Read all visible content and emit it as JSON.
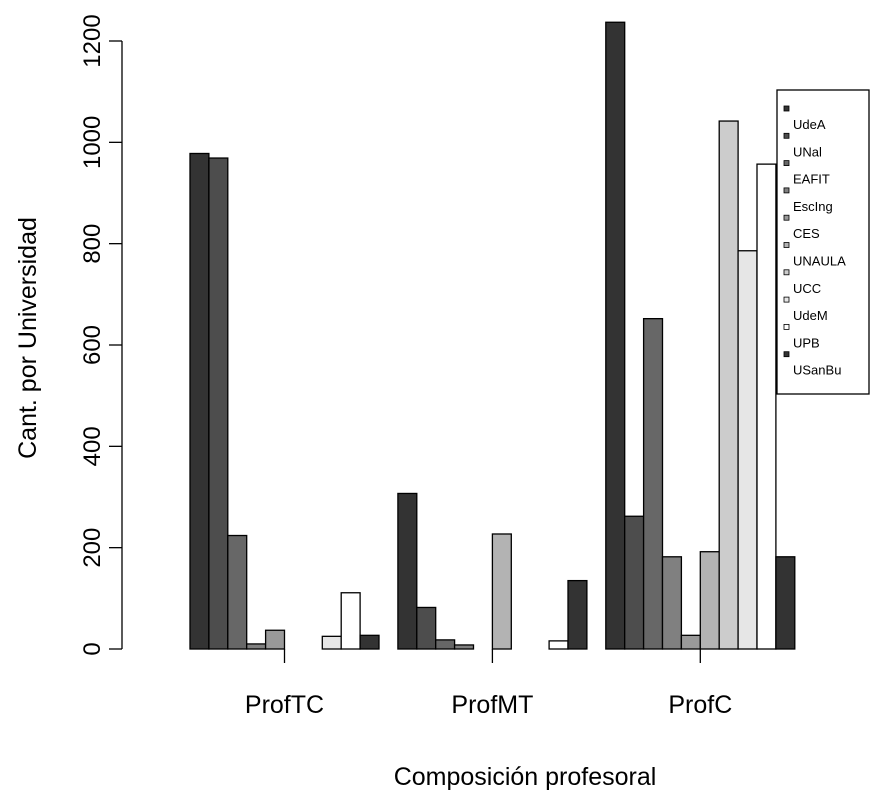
{
  "chart_data": {
    "type": "bar",
    "xlabel": "Composición profesoral",
    "ylabel": "Cant. por Universidad",
    "categories": [
      "ProfTC",
      "ProfMT",
      "ProfC"
    ],
    "ylim": [
      0,
      1200
    ],
    "yticks": [
      0,
      200,
      400,
      600,
      800,
      1000,
      1200
    ],
    "ytick_labels": [
      "0",
      "200",
      "400",
      "600",
      "800",
      "1000",
      "1200"
    ],
    "legend_position": "top-right",
    "grid": false,
    "series": [
      {
        "name": "UdeA",
        "color": "#333333",
        "values": [
          978,
          307,
          1237
        ]
      },
      {
        "name": "UNal",
        "color": "#4d4d4d",
        "values": [
          969,
          82,
          262
        ]
      },
      {
        "name": "EAFIT",
        "color": "#676767",
        "values": [
          224,
          18,
          652
        ]
      },
      {
        "name": "EscIng",
        "color": "#808080",
        "values": [
          10,
          8,
          182
        ]
      },
      {
        "name": "CES",
        "color": "#999999",
        "values": [
          37,
          0,
          27
        ]
      },
      {
        "name": "UNAULA",
        "color": "#b3b3b3",
        "values": [
          0,
          227,
          192
        ]
      },
      {
        "name": "UCC",
        "color": "#cccccc",
        "values": [
          0,
          0,
          1042
        ]
      },
      {
        "name": "UdeM",
        "color": "#e6e6e6",
        "values": [
          25,
          0,
          786
        ]
      },
      {
        "name": "UPB",
        "color": "#ffffff",
        "values": [
          111,
          16,
          957
        ]
      },
      {
        "name": "USanBu",
        "color": "#333333",
        "values": [
          27,
          135,
          182
        ]
      }
    ]
  }
}
